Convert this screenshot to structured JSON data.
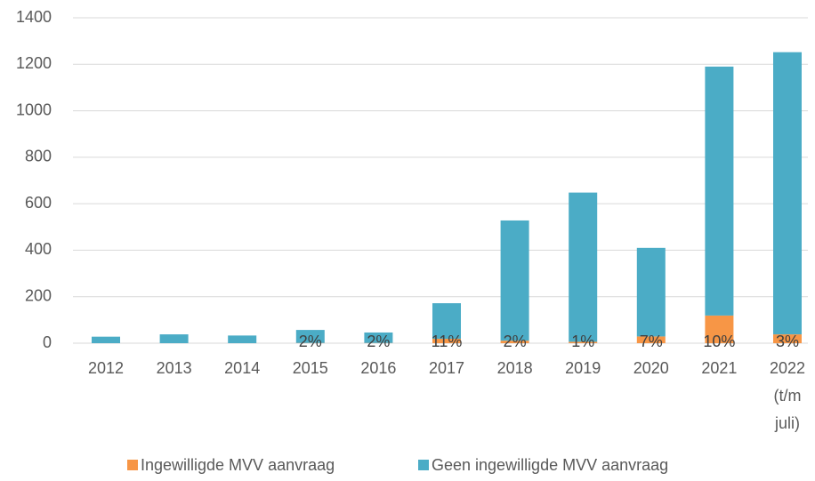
{
  "chart_data": {
    "type": "stacked_bar",
    "categories": [
      "2012",
      "2013",
      "2014",
      "2015",
      "2016",
      "2017",
      "2018",
      "2019",
      "2020",
      "2021",
      "2022\n(t/m\njuli)"
    ],
    "series": [
      {
        "name": "Ingewilligde MVV aanvraag",
        "color": "#f79646",
        "values": [
          0,
          0,
          0,
          1,
          1,
          19,
          11,
          6,
          29,
          119,
          38
        ]
      },
      {
        "name": "Geen ingewilligde MVV aanvraag",
        "color": "#4bacc6",
        "values": [
          28,
          38,
          33,
          56,
          45,
          153,
          517,
          642,
          381,
          1071,
          1214
        ]
      }
    ],
    "annotations": [
      null,
      null,
      null,
      "2%",
      "2%",
      "11%",
      "2%",
      "1%",
      "7%",
      "10%",
      "3%"
    ],
    "ylim": [
      0,
      1400
    ],
    "yticks": [
      0,
      200,
      400,
      600,
      800,
      1000,
      1200,
      1400
    ],
    "grid": true,
    "legend": "bottom"
  }
}
